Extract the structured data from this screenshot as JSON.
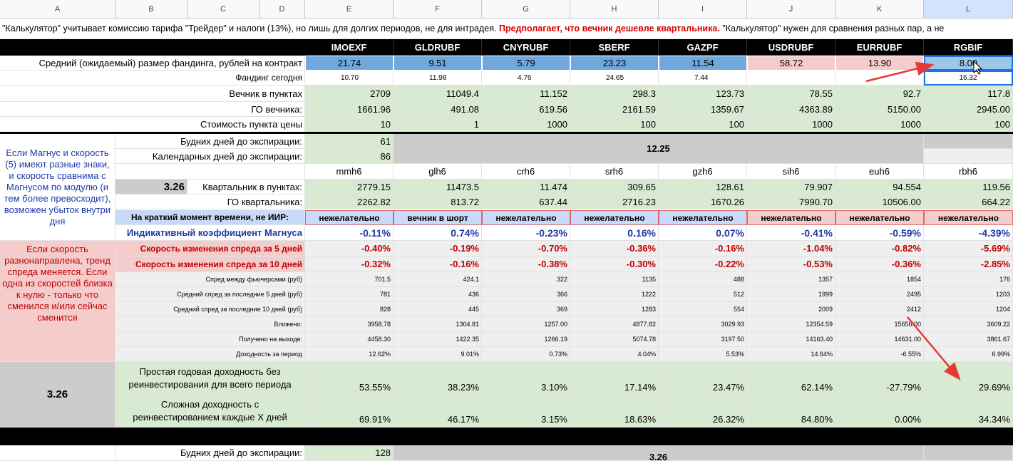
{
  "column_headers": [
    "A",
    "B",
    "C",
    "D",
    "E",
    "F",
    "G",
    "H",
    "I",
    "J",
    "K",
    "L"
  ],
  "note": {
    "text": "\"Калькулятор\" учитывает комиссию тарифа \"Трейдер\" и налоги (13%), но лишь для долгих периодов, не для интрадея. ",
    "highlight": "Предполагает, что вечник дешевле квартальника.",
    "text_end": " \"Калькулятор\" нужен для сравнения разных пар, а не"
  },
  "tickers": [
    "IMOEXF",
    "GLDRUBF",
    "CNYRUBF",
    "SBERF",
    "GAZPF",
    "USDRUBF",
    "EURRUBF",
    "RGBIF"
  ],
  "top_rows": [
    {
      "label": "Средний (ожидаемый) размер фандинга, рублей на контракт",
      "values": [
        "21.74",
        "9.51",
        "5.79",
        "23.23",
        "11.54",
        "58.72",
        "13.90",
        "8.00"
      ]
    },
    {
      "label": "Фандинг сегодня",
      "values": [
        "10.70",
        "11.98",
        "4.76",
        "24.65",
        "7.44",
        null,
        null,
        "16.32"
      ]
    },
    {
      "label": "Вечник в пунктах",
      "values": [
        "2709",
        "11049.4",
        "11.152",
        "298.3",
        "123.73",
        "78.55",
        "92.7",
        "117.8"
      ]
    },
    {
      "label": "ГО вечника:",
      "values": [
        "1661.96",
        "491.08",
        "619.56",
        "2161.59",
        "1359.67",
        "4363.89",
        "5150.00",
        "2945.00"
      ]
    },
    {
      "label": "Стоимость пункта цены",
      "values": [
        "10",
        "1",
        "1000",
        "100",
        "100",
        "1000",
        "1000",
        "100"
      ]
    }
  ],
  "expiry": {
    "weekdays_label": "Будних дней до экспирации:",
    "weekdays": "61",
    "calendar_label": "Календарных дней до экспирации:",
    "calendar": "86",
    "ratio": "12.25"
  },
  "magnus_note": "Если Магнус и скорость (5) имеют разные знаки, и скорость сравнима с Магнусом по модулю (и тем более превосходит), возможен убыток внутри дня",
  "side_value": "3.26",
  "quarterly_tickers": [
    "mmh6",
    "glh6",
    "crh6",
    "srh6",
    "gzh6",
    "sih6",
    "euh6",
    "rbh6"
  ],
  "quarterly_rows": [
    {
      "label": "Квартальник в пунктах:",
      "values": [
        "2779.15",
        "11473.5",
        "11.474",
        "309.65",
        "128.61",
        "79.907",
        "94.554",
        "119.56"
      ]
    },
    {
      "label": "ГО квартальника:",
      "values": [
        "2262.82",
        "813.72",
        "637.44",
        "2716.23",
        "1670.26",
        "7990.70",
        "10506.00",
        "664.22"
      ]
    }
  ],
  "signal_row": {
    "label": "На краткий момент времени, не ИИР:",
    "values": [
      "нежелательно",
      "вечник в шорт",
      "нежелательно",
      "нежелательно",
      "нежелательно",
      "нежелательно",
      "нежелательно",
      "нежелательно"
    ]
  },
  "magnus_row": {
    "label": "Индикативный коэффициент Магнуса",
    "values": [
      "-0.11%",
      "0.74%",
      "-0.23%",
      "0.16%",
      "0.07%",
      "-0.41%",
      "-0.59%",
      "-4.39%"
    ]
  },
  "speed_rows": [
    {
      "label": "Скорость изменения спреда за 5 дней",
      "values": [
        "-0.40%",
        "-0.19%",
        "-0.70%",
        "-0.36%",
        "-0.16%",
        "-1.04%",
        "-0.82%",
        "-5.69%"
      ]
    },
    {
      "label": "Скорость изменения спреда за 10 дней",
      "values": [
        "-0.32%",
        "-0.16%",
        "-0.38%",
        "-0.30%",
        "-0.22%",
        "-0.53%",
        "-0.36%",
        "-2.85%"
      ]
    }
  ],
  "speed_note": "Если скорость разнонаправлена, тренд спреда меняется. Если одна из скоростей близка к нулю - только что сменился и/или сейчас сменится",
  "detail_rows": [
    {
      "label": "Спред между фьючерсами (руб)",
      "values": [
        "701.5",
        "424.1",
        "322",
        "1135",
        "488",
        "1357",
        "1854",
        "176"
      ]
    },
    {
      "label": "Средний спред за последние 5 дней (руб)",
      "values": [
        "781",
        "436",
        "366",
        "1222",
        "512",
        "1999",
        "2495",
        "1203"
      ]
    },
    {
      "label": "Средний спред за последние 10 дней (руб)",
      "values": [
        "828",
        "445",
        "369",
        "1283",
        "554",
        "2009",
        "2412",
        "1204"
      ]
    },
    {
      "label": "Вложено:",
      "values": [
        "3958.78",
        "1304.81",
        "1257.00",
        "4877.82",
        "3029.93",
        "12354.59",
        "15656.00",
        "3609.22"
      ]
    },
    {
      "label": "Получено на выходе:",
      "values": [
        "4458.30",
        "1422.35",
        "1266.19",
        "5074.78",
        "3197.50",
        "14163.40",
        "14631.00",
        "3861.67"
      ]
    },
    {
      "label": "Доходность за период",
      "values": [
        "12.62%",
        "9.01%",
        "0.73%",
        "4.04%",
        "5.53%",
        "14.64%",
        "-6.55%",
        "6.99%"
      ]
    }
  ],
  "yield_value": "3.26",
  "yield_rows": [
    {
      "label": "Простая годовая доходность без реинвестирования для всего периода",
      "values": [
        "53.55%",
        "38.23%",
        "3.10%",
        "17.14%",
        "23.47%",
        "62.14%",
        "-27.79%",
        "29.69%"
      ]
    },
    {
      "label": "Сложная доходность с реинвестированием каждые Х дней",
      "values": [
        "69.91%",
        "46.17%",
        "3.15%",
        "18.63%",
        "26.32%",
        "84.80%",
        "0.00%",
        "34.34%"
      ]
    }
  ],
  "next_expiry": {
    "weekdays_label": "Будних дней до экспирации:",
    "weekdays": "128",
    "ratio": "3.26"
  }
}
